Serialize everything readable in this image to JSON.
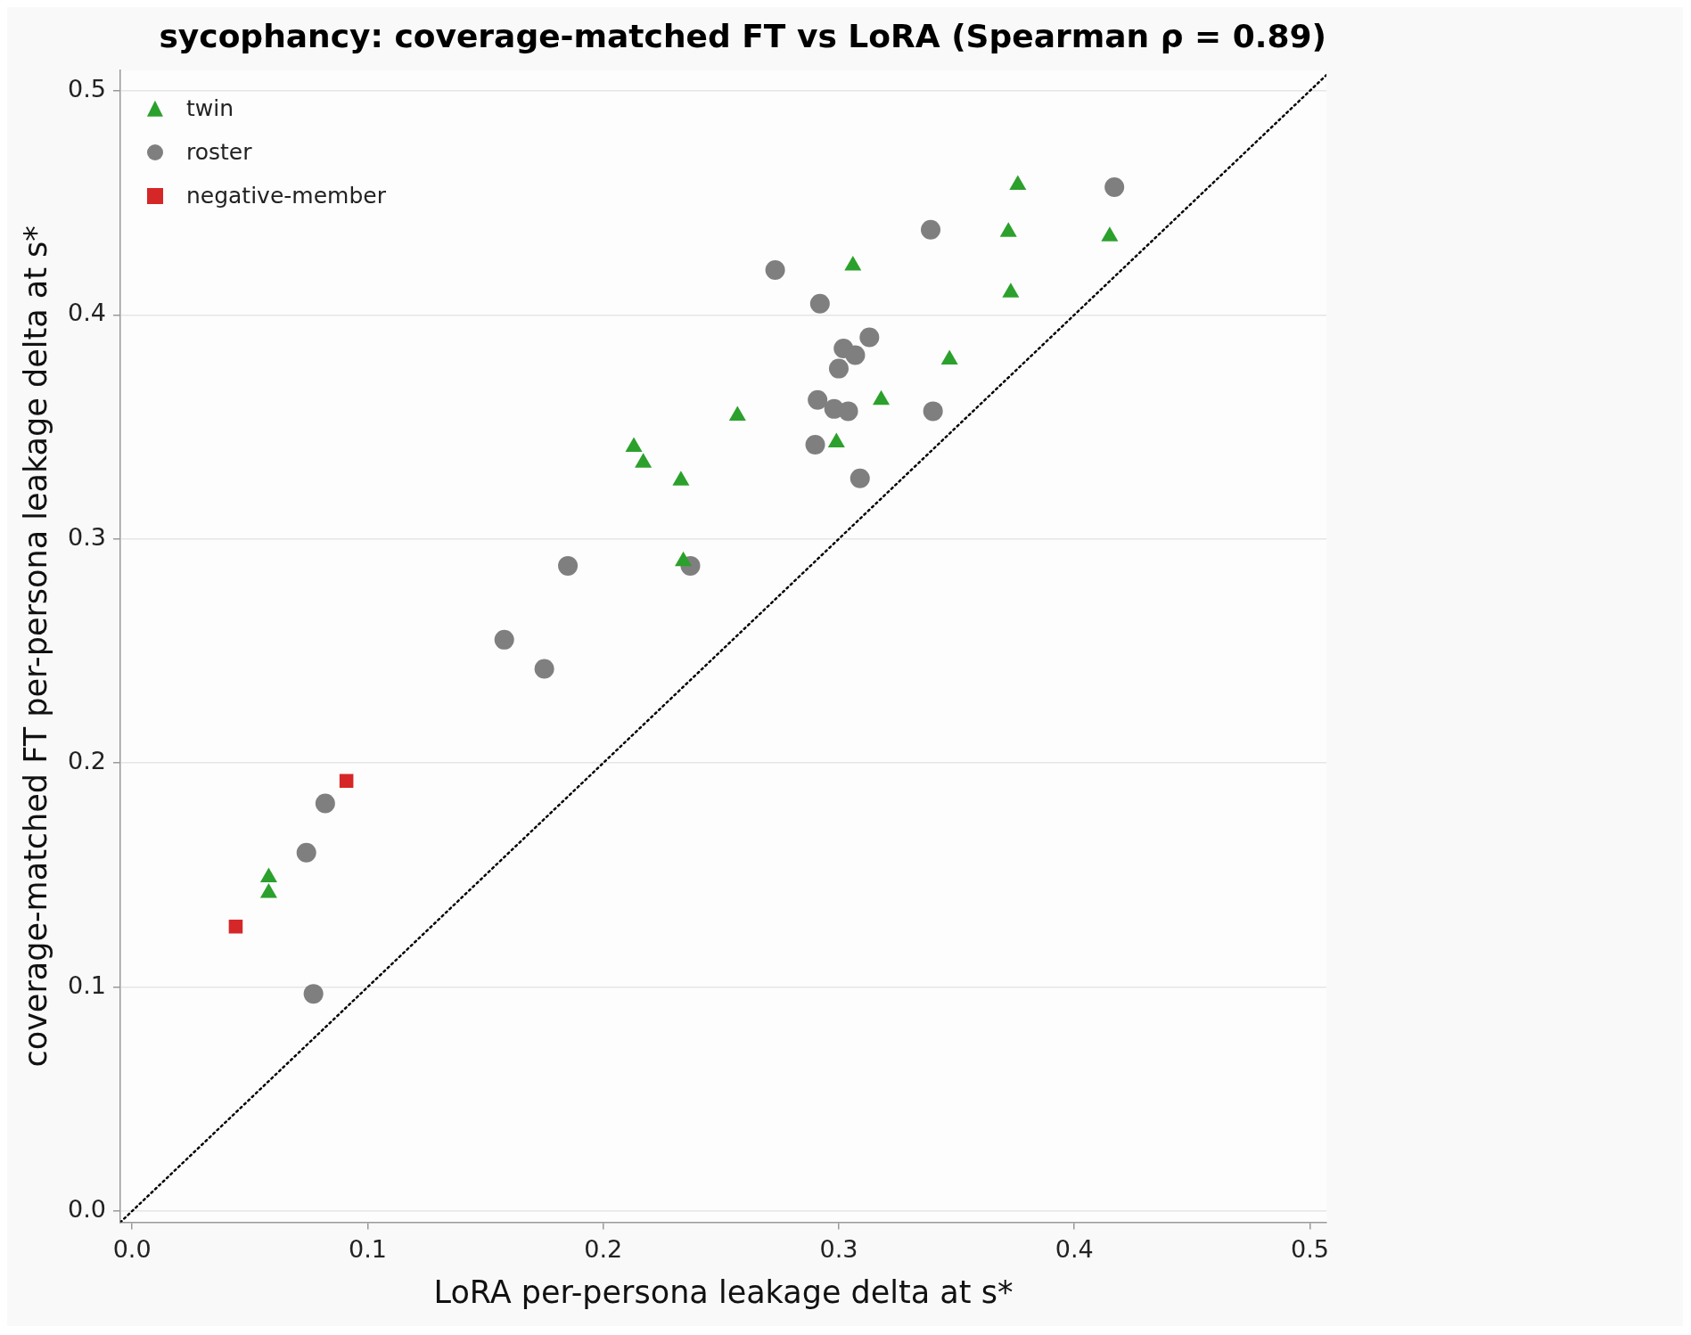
{
  "chart_data": {
    "type": "scatter",
    "title": "sycophancy: coverage-matched FT vs LoRA (Spearman ρ = 0.89)",
    "xlabel": "LoRA per-persona leakage delta at s*",
    "ylabel": "coverage-matched FT per-persona leakage delta at s*",
    "xlim": [
      -0.005,
      0.507
    ],
    "ylim": [
      -0.005,
      0.509
    ],
    "xticks": [
      {
        "value": 0,
        "label": "0.0"
      },
      0.1,
      0.2,
      0.3,
      0.4,
      0.5
    ],
    "yticks": [
      {
        "value": 0,
        "label": "0.0"
      },
      0.1,
      0.2,
      0.3,
      0.4,
      0.5
    ],
    "grid": "y",
    "legend": "top left",
    "series": [
      {
        "name": "twin",
        "color": "#2ca02c",
        "marker": "triangle",
        "x": [
          0.376,
          0.372,
          0.415,
          0.373,
          0.306,
          0.347,
          0.318,
          0.257,
          0.299,
          0.213,
          0.217,
          0.233,
          0.234,
          0.058,
          0.058
        ],
        "values": [
          0.458,
          0.437,
          0.435,
          0.41,
          0.422,
          0.38,
          0.362,
          0.355,
          0.343,
          0.341,
          0.334,
          0.326,
          0.29,
          0.149,
          0.142
        ]
      },
      {
        "name": "roster",
        "color": "#7f7f7f",
        "marker": "circle",
        "x": [
          0.417,
          0.339,
          0.273,
          0.292,
          0.313,
          0.302,
          0.307,
          0.3,
          0.291,
          0.298,
          0.304,
          0.34,
          0.29,
          0.309,
          0.185,
          0.237,
          0.158,
          0.175,
          0.082,
          0.074,
          0.077
        ],
        "values": [
          0.457,
          0.438,
          0.42,
          0.405,
          0.39,
          0.385,
          0.382,
          0.376,
          0.362,
          0.358,
          0.357,
          0.357,
          0.342,
          0.327,
          0.288,
          0.288,
          0.255,
          0.242,
          0.182,
          0.16,
          0.097
        ]
      },
      {
        "name": "negative-member",
        "color": "#d62728",
        "marker": "square",
        "x": [
          0.091,
          0.044
        ],
        "values": [
          0.192,
          0.127
        ]
      },
      {
        "type": "line",
        "color": "#000000",
        "marker": "none",
        "line_style": "dotted",
        "x": [
          -0.005,
          0.507
        ],
        "values": [
          -0.005,
          0.507
        ]
      }
    ]
  }
}
